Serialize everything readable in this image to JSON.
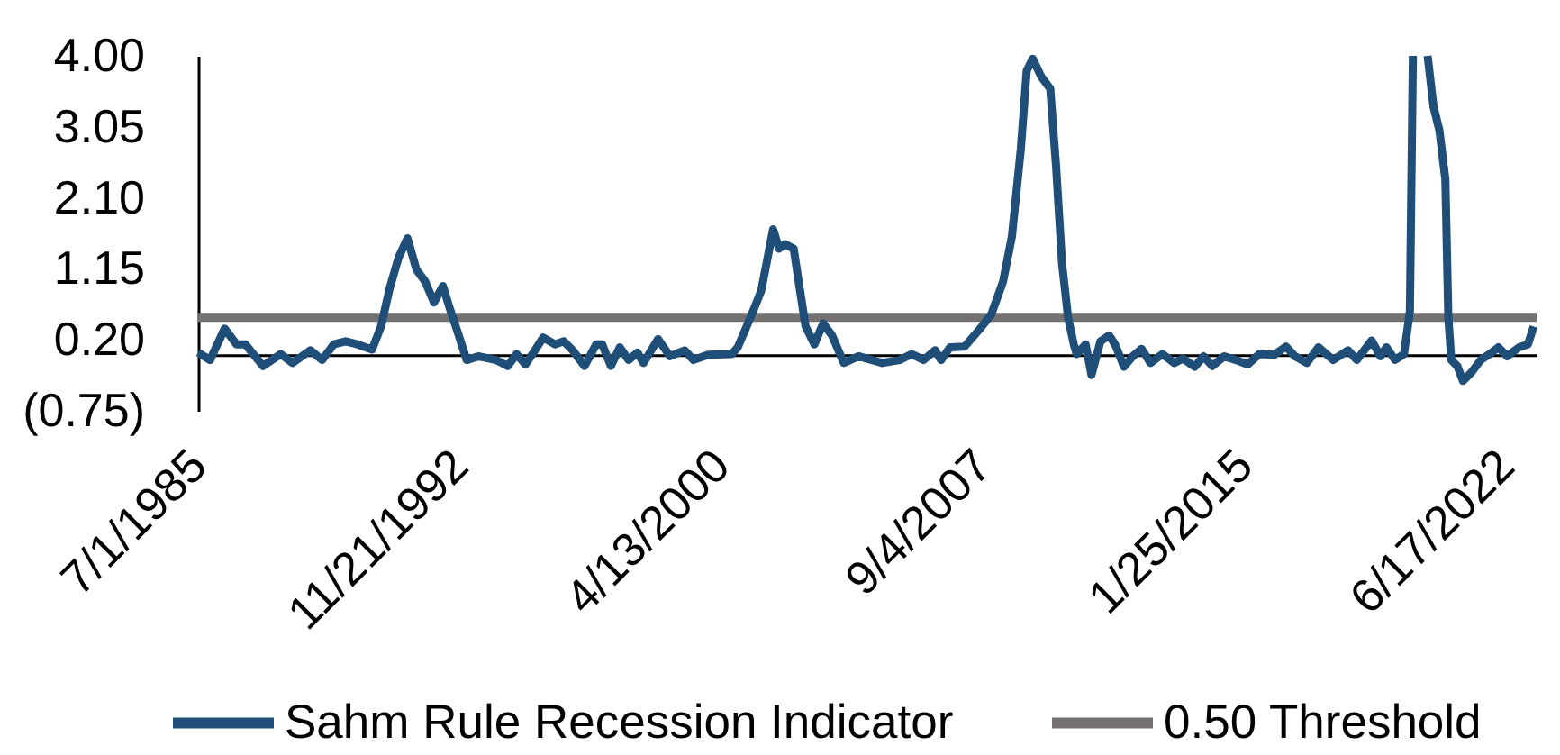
{
  "chart_data": {
    "type": "line",
    "xlim": [
      "1985-07-01",
      "2023-05-01"
    ],
    "xticks": [
      {
        "value": "1985-07-01",
        "label": "7/1/1985"
      },
      {
        "value": "1992-11-21",
        "label": "11/21/1992"
      },
      {
        "value": "2000-04-13",
        "label": "4/13/2000"
      },
      {
        "value": "2007-09-04",
        "label": "9/4/2007"
      },
      {
        "value": "2015-01-25",
        "label": "1/25/2015"
      },
      {
        "value": "2022-06-17",
        "label": "6/17/2022"
      }
    ],
    "ylim": [
      -0.75,
      4.0
    ],
    "yticks": [
      {
        "value": -0.75,
        "label": "(0.75)"
      },
      {
        "value": 0.2,
        "label": "0.20"
      },
      1.15,
      {
        "value": 2.1,
        "label": "2.10"
      },
      3.05,
      {
        "value": 4,
        "label": "4.00"
      }
    ],
    "series": [
      {
        "name": "Sahm Rule Recession Indicator",
        "color": "#1f4e79",
        "x": [
          "1985-07",
          "1985-11",
          "1986-04",
          "1986-08",
          "1986-11",
          "1987-05",
          "1987-11",
          "1988-03",
          "1988-09",
          "1989-01",
          "1989-05",
          "1989-09",
          "1990-01",
          "1990-06",
          "1990-09",
          "1990-12",
          "1991-03",
          "1991-06",
          "1991-09",
          "1991-12",
          "1992-03",
          "1992-06",
          "1992-08",
          "1992-11",
          "1993-02",
          "1993-06",
          "1993-12",
          "1994-04",
          "1994-07",
          "1994-10",
          "1995-01",
          "1995-04",
          "1995-08",
          "1995-11",
          "1996-02",
          "1996-06",
          "1996-10",
          "1996-12",
          "1997-03",
          "1997-06",
          "1997-09",
          "1997-12",
          "1998-02",
          "1998-07",
          "1998-11",
          "1999-04",
          "1999-07",
          "1999-12",
          "2000-08",
          "2000-10",
          "2001-01",
          "2001-04",
          "2001-06",
          "2001-10",
          "2001-12",
          "2002-02",
          "2002-05",
          "2002-07",
          "2002-09",
          "2002-12",
          "2003-03",
          "2003-06",
          "2003-10",
          "2004-03",
          "2004-11",
          "2005-05",
          "2005-09",
          "2006-01",
          "2006-05",
          "2006-07",
          "2006-10",
          "2007-03",
          "2007-08",
          "2007-12",
          "2008-04",
          "2008-07",
          "2008-10",
          "2008-12",
          "2009-02",
          "2009-05",
          "2009-08",
          "2009-10",
          "2009-12",
          "2010-02",
          "2010-04",
          "2010-05",
          "2010-08",
          "2010-10",
          "2011-01",
          "2011-04",
          "2011-06",
          "2011-09",
          "2011-12",
          "2012-03",
          "2012-06",
          "2012-10",
          "2013-02",
          "2013-05",
          "2013-09",
          "2013-12",
          "2014-03",
          "2014-07",
          "2014-11",
          "2015-03",
          "2015-07",
          "2015-12",
          "2016-04",
          "2016-07",
          "2016-11",
          "2017-03",
          "2017-08",
          "2018-01",
          "2018-04",
          "2018-09",
          "2018-12",
          "2019-02",
          "2019-05",
          "2019-08",
          "2019-10",
          "2019-11",
          "2020-01",
          "2020-04",
          "2020-06",
          "2020-08",
          "2020-10",
          "2020-11",
          "2020-12",
          "2021-02",
          "2021-04",
          "2021-07",
          "2021-10",
          "2022-01",
          "2022-04",
          "2022-07",
          "2022-11",
          "2023-02",
          "2023-04"
        ],
        "values": [
          0.03,
          -0.07,
          0.35,
          0.14,
          0.14,
          -0.15,
          0.01,
          -0.11,
          0.06,
          -0.07,
          0.14,
          0.18,
          0.14,
          0.07,
          0.38,
          0.9,
          1.3,
          1.56,
          1.14,
          0.98,
          0.7,
          0.92,
          0.66,
          0.3,
          -0.07,
          -0.02,
          -0.07,
          -0.15,
          0.01,
          -0.13,
          0.05,
          0.23,
          0.14,
          0.18,
          0.06,
          -0.15,
          0.14,
          0.14,
          -0.15,
          0.1,
          -0.07,
          0.03,
          -0.11,
          0.21,
          -0.02,
          0.06,
          -0.07,
          0.0,
          0.01,
          0.1,
          0.38,
          0.66,
          0.86,
          1.68,
          1.42,
          1.48,
          1.42,
          0.9,
          0.38,
          0.14,
          0.42,
          0.26,
          -0.11,
          -0.02,
          -0.11,
          -0.07,
          0.01,
          -0.07,
          0.06,
          -0.07,
          0.1,
          0.11,
          0.34,
          0.54,
          0.98,
          1.58,
          2.75,
          3.8,
          3.96,
          3.72,
          3.56,
          2.51,
          1.22,
          0.5,
          0.14,
          0.01,
          0.14,
          -0.27,
          0.18,
          0.26,
          0.14,
          -0.16,
          -0.02,
          0.08,
          -0.11,
          0.01,
          -0.11,
          -0.05,
          -0.16,
          -0.02,
          -0.15,
          -0.02,
          -0.07,
          -0.13,
          0.01,
          0.0,
          0.11,
          -0.02,
          -0.11,
          0.1,
          -0.07,
          0.06,
          -0.07,
          0.19,
          -0.02,
          0.1,
          -0.07,
          0.01,
          0.58,
          4.0,
          null,
          4.0,
          3.32,
          3.0,
          2.35,
          0.5,
          -0.07,
          -0.15,
          -0.35,
          -0.23,
          -0.07,
          0.01,
          0.1,
          -0.02,
          0.1,
          0.14,
          0.38
        ]
      }
    ],
    "ref_lines": [
      {
        "axis": "y",
        "value": 0.5,
        "label": "0.50 Threshold",
        "color": "#767171"
      }
    ],
    "legend": "bottom"
  }
}
